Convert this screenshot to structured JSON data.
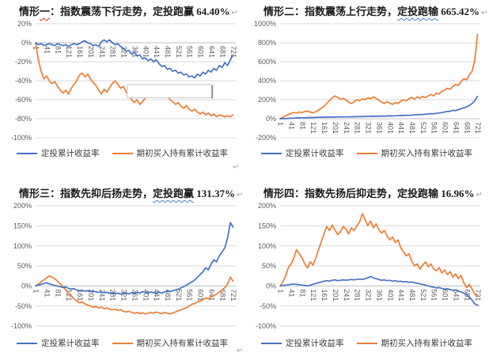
{
  "colors": {
    "dca": "#4472C4",
    "buyhold": "#ED7D31",
    "grid": "#D9D9D9",
    "axis_line": "#BFBFBF",
    "axis_text": "#595959",
    "title_text": "#1A1A1A",
    "wavy_red": "#D93025",
    "wavy_blue": "#4A7EBB",
    "annotation_border": "#C8C8C8",
    "annotation_shadow": "#8F8F8F"
  },
  "legend": {
    "dca": "定投累计收益率",
    "buyhold": "期初买入持有累计收益率"
  },
  "marks": {
    "return_mark": "↵"
  },
  "chart_data": [
    {
      "id": "scenario-1",
      "type": "line",
      "title": "情形一：指数震荡下行走势，定投跑赢 64.40%",
      "title_parts": [
        {
          "t": "情形"
        },
        {
          "t": "一",
          "wavy": "red"
        },
        {
          "t": "：指数震荡下行走势，定投跑赢 "
        },
        {
          "t": "64.40%"
        }
      ],
      "xlabel": "",
      "ylabel": "",
      "y_ticks": [
        20,
        0,
        -20,
        -40,
        -60,
        -80,
        -100
      ],
      "y_max": 20,
      "y_min": -100,
      "x_ticks": [
        1,
        41,
        81,
        121,
        161,
        201,
        241,
        281,
        321,
        361,
        401,
        441,
        481,
        521,
        561,
        601,
        641,
        681,
        721
      ],
      "x_start": 1,
      "x_step": 10,
      "x_max": 731,
      "annotation_box": {
        "x0": 335,
        "x1": 645,
        "y0": -44,
        "y1": -58
      },
      "series": [
        {
          "key": "dca",
          "name": "定投累计收益率",
          "values": [
            0,
            -2,
            -1,
            -3,
            -2,
            -1,
            -2,
            -3,
            -1,
            -2,
            -3,
            -2,
            -4,
            -2,
            -1,
            -2,
            -1,
            1,
            2,
            0,
            -1,
            -3,
            -2,
            -4,
            1,
            3,
            1,
            3,
            0,
            -2,
            -1,
            -4,
            -6,
            -9,
            -8,
            -12,
            -10,
            -14,
            -13,
            -17,
            -16,
            -19,
            -17,
            -20,
            -18,
            -22,
            -25,
            -24,
            -28,
            -27,
            -30,
            -29,
            -32,
            -31,
            -34,
            -33,
            -36,
            -35,
            -37,
            -33,
            -35,
            -31,
            -33,
            -29,
            -31,
            -27,
            -29,
            -24,
            -26,
            -21,
            -24,
            -18,
            -13
          ]
        },
        {
          "key": "buyhold",
          "name": "期初买入持有累计收益率",
          "values": [
            0,
            -18,
            -30,
            -38,
            -35,
            -40,
            -43,
            -41,
            -46,
            -50,
            -53,
            -50,
            -54,
            -48,
            -44,
            -40,
            -34,
            -32,
            -36,
            -33,
            -38,
            -42,
            -45,
            -50,
            -54,
            -49,
            -52,
            -47,
            -43,
            -40,
            -44,
            -48,
            -46,
            -52,
            -55,
            -60,
            -63,
            -60,
            -65,
            -62,
            -58,
            -54,
            -50,
            -48,
            -52,
            -50,
            -55,
            -58,
            -56,
            -60,
            -62,
            -65,
            -63,
            -67,
            -69,
            -66,
            -70,
            -72,
            -70,
            -73,
            -75,
            -73,
            -76,
            -74,
            -77,
            -75,
            -78,
            -76,
            -77,
            -78,
            -77,
            -78,
            -76
          ]
        }
      ]
    },
    {
      "id": "scenario-2",
      "type": "line",
      "title": "情形二：指数震荡上行走势，定投跑输 665.42%",
      "title_parts": [
        {
          "t": "情形二：指数震荡上行走势，"
        },
        {
          "t": "定投跑输",
          "wavy": "blue"
        },
        {
          "t": " 665.42%"
        }
      ],
      "xlabel": "",
      "ylabel": "",
      "y_ticks": [
        1000,
        800,
        600,
        400,
        200,
        0,
        -200
      ],
      "y_max": 1000,
      "y_min": -200,
      "x_ticks": [
        1,
        41,
        81,
        121,
        161,
        201,
        241,
        281,
        321,
        361,
        401,
        441,
        481,
        521,
        561,
        601,
        641,
        681,
        721
      ],
      "x_start": 1,
      "x_step": 10,
      "x_max": 731,
      "series": [
        {
          "key": "dca",
          "name": "定投累计收益率",
          "values": [
            0,
            1,
            2,
            3,
            5,
            6,
            8,
            9,
            10,
            11,
            12,
            13,
            12,
            14,
            15,
            16,
            15,
            17,
            18,
            17,
            18,
            19,
            18,
            20,
            19,
            21,
            20,
            22,
            21,
            23,
            22,
            24,
            23,
            25,
            26,
            25,
            27,
            28,
            27,
            29,
            30,
            29,
            31,
            32,
            34,
            33,
            36,
            35,
            38,
            40,
            42,
            44,
            43,
            47,
            50,
            53,
            52,
            57,
            60,
            65,
            70,
            75,
            80,
            88,
            85,
            95,
            105,
            115,
            125,
            140,
            160,
            190,
            235
          ]
        },
        {
          "key": "buyhold",
          "name": "期初买入持有累计收益率",
          "values": [
            0,
            15,
            30,
            45,
            55,
            65,
            60,
            70,
            65,
            75,
            80,
            70,
            60,
            75,
            90,
            110,
            130,
            160,
            190,
            220,
            240,
            225,
            205,
            215,
            195,
            175,
            160,
            180,
            200,
            190,
            210,
            200,
            220,
            210,
            230,
            215,
            195,
            175,
            160,
            180,
            165,
            150,
            170,
            160,
            185,
            200,
            190,
            210,
            225,
            205,
            230,
            215,
            235,
            220,
            240,
            255,
            240,
            270,
            260,
            290,
            300,
            320,
            310,
            340,
            360,
            350,
            390,
            420,
            410,
            460,
            500,
            620,
            890
          ]
        }
      ]
    },
    {
      "id": "scenario-3",
      "type": "line",
      "title": "情形三：指数先抑后扬走势，定投跑赢 131.37%",
      "title_parts": [
        {
          "t": "情形三：指数先抑后扬走势，"
        },
        {
          "t": "定投跑赢",
          "wavy": "blue"
        },
        {
          "t": " 131.37%"
        }
      ],
      "xlabel": "",
      "ylabel": "",
      "y_ticks": [
        200,
        150,
        100,
        50,
        0,
        -50,
        -100
      ],
      "y_max": 200,
      "y_min": -100,
      "x_ticks": [
        1,
        41,
        81,
        121,
        161,
        201,
        241,
        281,
        321,
        361,
        401,
        441,
        481,
        521,
        561,
        601,
        641,
        681,
        721
      ],
      "x_start": 1,
      "x_step": 10,
      "x_max": 731,
      "series": [
        {
          "key": "dca",
          "name": "定投累计收益率",
          "values": [
            0,
            2,
            4,
            6,
            8,
            5,
            3,
            1,
            0,
            -2,
            -4,
            -3,
            -6,
            -8,
            -7,
            -10,
            -12,
            -11,
            -13,
            -12,
            -14,
            -13,
            -15,
            -16,
            -15,
            -17,
            -16,
            -18,
            -17,
            -19,
            -18,
            -20,
            -19,
            -18,
            -20,
            -17,
            -19,
            -16,
            -18,
            -14,
            -16,
            -18,
            -15,
            -17,
            -19,
            -16,
            -18,
            -15,
            -13,
            -14,
            -12,
            -10,
            -8,
            -5,
            -2,
            2,
            6,
            10,
            15,
            22,
            28,
            35,
            45,
            40,
            55,
            65,
            60,
            75,
            85,
            95,
            120,
            158,
            147
          ]
        },
        {
          "key": "buyhold",
          "name": "期初买入持有累计收益率",
          "values": [
            0,
            5,
            10,
            15,
            20,
            25,
            22,
            18,
            12,
            5,
            -2,
            -10,
            -18,
            -25,
            -32,
            -38,
            -42,
            -40,
            -45,
            -48,
            -50,
            -53,
            -51,
            -55,
            -53,
            -57,
            -55,
            -58,
            -60,
            -58,
            -61,
            -59,
            -63,
            -65,
            -63,
            -66,
            -68,
            -66,
            -69,
            -67,
            -70,
            -68,
            -66,
            -68,
            -65,
            -67,
            -69,
            -66,
            -68,
            -70,
            -67,
            -65,
            -62,
            -60,
            -57,
            -54,
            -50,
            -46,
            -44,
            -40,
            -38,
            -34,
            -30,
            -32,
            -28,
            -24,
            -20,
            -15,
            -10,
            -4,
            5,
            22,
            12
          ]
        }
      ]
    },
    {
      "id": "scenario-4",
      "type": "line",
      "title": "情形四：指数先扬后抑走势，定投跑输 16.96%",
      "title_parts": [
        {
          "t": "情形四：指数先扬后抑走势，定投跑输 "
        },
        {
          "t": "16.96%"
        }
      ],
      "xlabel": "",
      "ylabel": "",
      "y_ticks": [
        200,
        150,
        100,
        50,
        0,
        -50,
        -100
      ],
      "y_max": 200,
      "y_min": -100,
      "x_ticks": [
        1,
        41,
        81,
        121,
        161,
        201,
        241,
        281,
        321,
        361,
        401,
        441,
        481,
        521,
        561,
        601,
        641,
        681,
        721
      ],
      "x_start": 1,
      "x_step": 10,
      "x_max": 731,
      "series": [
        {
          "key": "dca",
          "name": "定投累计收益率",
          "values": [
            0,
            1,
            2,
            3,
            4,
            5,
            4,
            3,
            2,
            1,
            0,
            2,
            4,
            6,
            8,
            10,
            12,
            13,
            12,
            14,
            15,
            13,
            14,
            15,
            14,
            15,
            16,
            15,
            16,
            17,
            16,
            18,
            20,
            24,
            20,
            18,
            16,
            14,
            15,
            13,
            14,
            12,
            13,
            11,
            12,
            10,
            11,
            9,
            10,
            8,
            7,
            5,
            4,
            2,
            0,
            -2,
            -3,
            -5,
            -4,
            -6,
            -8,
            -7,
            -9,
            -11,
            -10,
            -13,
            -15,
            -18,
            -22,
            -28,
            -35,
            -45,
            -48
          ]
        },
        {
          "key": "buyhold",
          "name": "期初买入持有累计收益率",
          "values": [
            0,
            10,
            25,
            45,
            55,
            70,
            90,
            80,
            70,
            55,
            45,
            60,
            52,
            70,
            90,
            110,
            130,
            148,
            138,
            152,
            140,
            128,
            135,
            148,
            142,
            130,
            145,
            138,
            150,
            160,
            180,
            165,
            150,
            162,
            145,
            155,
            140,
            132,
            138,
            125,
            115,
            122,
            108,
            115,
            95,
            85,
            75,
            80,
            62,
            50,
            55,
            42,
            52,
            60,
            48,
            55,
            42,
            38,
            46,
            32,
            40,
            28,
            36,
            22,
            30,
            18,
            26,
            8,
            -4,
            4,
            -8,
            -20,
            -27
          ]
        }
      ]
    }
  ]
}
